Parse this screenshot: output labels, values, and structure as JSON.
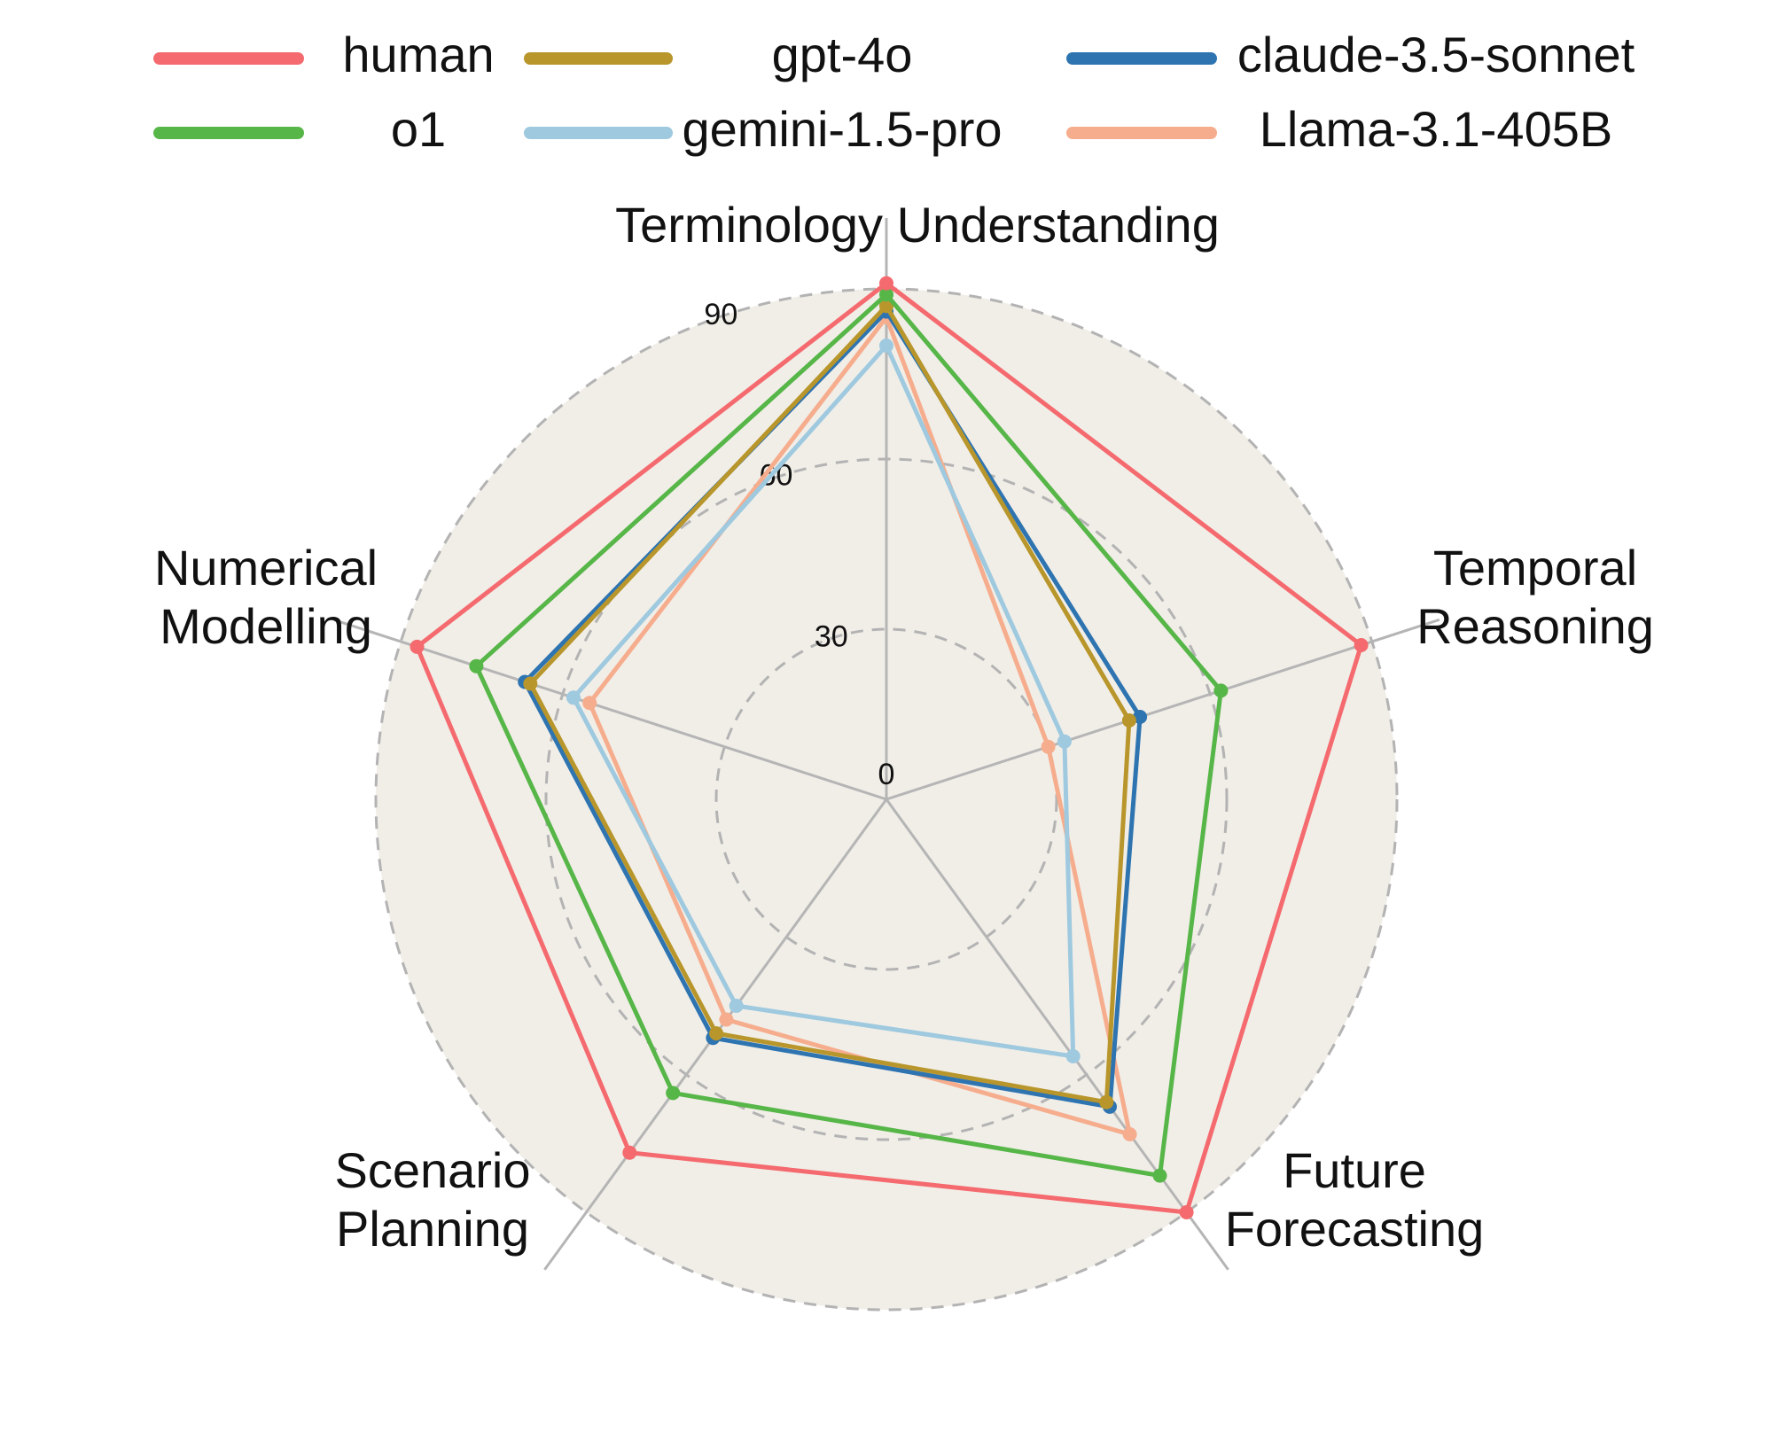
{
  "chart_data": {
    "type": "radar",
    "axes": [
      "Terminology Understanding",
      "Temporal Reasoning",
      "Future Forecasting",
      "Scenario Planning",
      "Numerical Modelling"
    ],
    "axis_label_lines": [
      [
        "Terminology Understanding"
      ],
      [
        "Temporal",
        "Reasoning"
      ],
      [
        "Future",
        "Forecasting"
      ],
      [
        "Scenario",
        "Planning"
      ],
      [
        "Numerical",
        "Modelling"
      ]
    ],
    "range": [
      0,
      90
    ],
    "ticks": [
      0,
      30,
      60,
      90
    ],
    "tick_labels": [
      "0",
      "30",
      "60",
      "90"
    ],
    "grid": true,
    "legend_position": "top",
    "background_color": "#f1eee8",
    "series": [
      {
        "name": "human",
        "color": "#f46a6e",
        "values": [
          91,
          88,
          90,
          77,
          87
        ]
      },
      {
        "name": "o1",
        "color": "#57b648",
        "values": [
          89,
          62,
          82,
          64,
          76
        ]
      },
      {
        "name": "gpt-4o",
        "color": "#b8962b",
        "values": [
          87,
          45,
          66,
          51,
          66
        ]
      },
      {
        "name": "claude-3.5-sonnet",
        "color": "#2e74b0",
        "values": [
          86,
          47,
          67,
          52,
          67
        ]
      },
      {
        "name": "gemini-1.5-pro",
        "color": "#9ec9df",
        "values": [
          80,
          33,
          56,
          45,
          58
        ]
      },
      {
        "name": "Llama-3.1-405B",
        "color": "#f6ad8d",
        "values": [
          85,
          30,
          73,
          48,
          55
        ]
      }
    ],
    "legend_order": [
      "human",
      "o1",
      "gpt-4o",
      "gemini-1.5-pro",
      "claude-3.5-sonnet",
      "Llama-3.1-405B"
    ]
  }
}
